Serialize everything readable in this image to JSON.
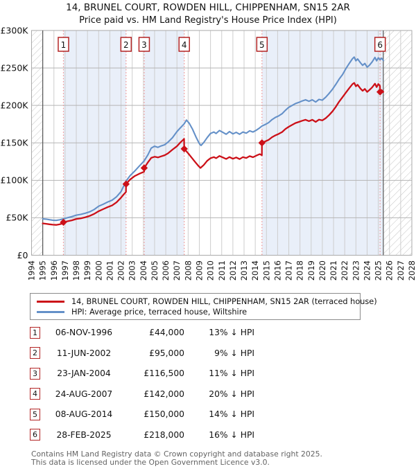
{
  "header": {
    "address_line": "14, BRUNEL COURT, ROWDEN HILL, CHIPPENHAM, SN15 2AR",
    "subtitle": "Price paid vs. HM Land Registry's House Price Index (HPI)"
  },
  "legend": {
    "series": [
      {
        "label": "14, BRUNEL COURT, ROWDEN HILL, CHIPPENHAM, SN15 2AR (terraced house)",
        "color": "#cc1018"
      },
      {
        "label": "HPI: Average price, terraced house, Wiltshire",
        "color": "#6490c8"
      }
    ]
  },
  "sales": [
    {
      "num": "1",
      "date": "06-NOV-1996",
      "price_label": "£44,000",
      "price": 44000,
      "year": 1996.85,
      "hpi_note": "13% ↓ HPI"
    },
    {
      "num": "2",
      "date": "11-JUN-2002",
      "price_label": "£95,000",
      "price": 95000,
      "year": 2002.45,
      "hpi_note": "9% ↓ HPI"
    },
    {
      "num": "3",
      "date": "23-JAN-2004",
      "price_label": "£116,500",
      "price": 116500,
      "year": 2004.07,
      "hpi_note": "11% ↓ HPI"
    },
    {
      "num": "4",
      "date": "24-AUG-2007",
      "price_label": "£142,000",
      "price": 142000,
      "year": 2007.65,
      "hpi_note": "20% ↓ HPI"
    },
    {
      "num": "5",
      "date": "08-AUG-2014",
      "price_label": "£150,000",
      "price": 150000,
      "year": 2014.6,
      "hpi_note": "14% ↓ HPI"
    },
    {
      "num": "6",
      "date": "28-FEB-2025",
      "price_label": "£218,000",
      "price": 218000,
      "year": 2025.16,
      "hpi_note": "16% ↓ HPI"
    }
  ],
  "footer": {
    "line1": "Contains HM Land Registry data © Crown copyright and database right 2025.",
    "line2": "This data is licensed under the Open Government Licence v3.0."
  },
  "chart_data": {
    "type": "line",
    "title": "14, BRUNEL COURT, ROWDEN HILL, CHIPPENHAM, SN15 2AR — Price paid vs. HPI",
    "xlabel": "",
    "ylabel": "",
    "grid": true,
    "legend_position": "below",
    "x_axis": {
      "min": 1994,
      "max": 2028,
      "ticks": [
        "1994",
        "1995",
        "1996",
        "1997",
        "1998",
        "1999",
        "2000",
        "2001",
        "2002",
        "2003",
        "2004",
        "2005",
        "2006",
        "2007",
        "2008",
        "2009",
        "2010",
        "2011",
        "2012",
        "2013",
        "2014",
        "2015",
        "2016",
        "2017",
        "2018",
        "2019",
        "2020",
        "2021",
        "2022",
        "2023",
        "2024",
        "2025",
        "2026",
        "2027",
        "2028"
      ]
    },
    "y_axis": {
      "min": 0,
      "max": 300000,
      "ticks": [
        {
          "v": 0,
          "label": "£0"
        },
        {
          "v": 50000,
          "label": "£50K"
        },
        {
          "v": 100000,
          "label": "£100K"
        },
        {
          "v": 150000,
          "label": "£150K"
        },
        {
          "v": 200000,
          "label": "£200K"
        },
        {
          "v": 250000,
          "label": "£250K"
        },
        {
          "v": 300000,
          "label": "£300K"
        }
      ]
    },
    "ownership_bands": [
      [
        1996.85,
        2002.45
      ],
      [
        2004.07,
        2007.65
      ],
      [
        2014.6,
        2025.45
      ]
    ],
    "no_data_hatch": [
      [
        1994,
        1995
      ],
      [
        2025.45,
        2028
      ]
    ],
    "colors": {
      "price_line": "#cc1018",
      "hpi_line": "#6490c8",
      "sale_marker": "#cc1018",
      "sale_vline": "#ee8e8e",
      "band_fill": "#e9eff9",
      "grid_v": "#cdcdcd",
      "grid_h": "#b5b5b5",
      "plot_border": "#aaaaaa",
      "data_edge_line": "#555555",
      "hatch_line": "#c4c4c4",
      "badge_border": "#b32424"
    },
    "series": [
      {
        "name": "14, BRUNEL COURT, ROWDEN HILL, CHIPPENHAM, SN15 2AR (terraced house)",
        "color": "#cc1018",
        "points": [
          [
            1995.0,
            42500
          ],
          [
            1995.3,
            42000
          ],
          [
            1995.6,
            41300
          ],
          [
            1995.9,
            40800
          ],
          [
            1996.2,
            40500
          ],
          [
            1996.5,
            41200
          ],
          [
            1996.84,
            42600
          ],
          [
            1996.85,
            44000
          ],
          [
            1997.2,
            45300
          ],
          [
            1997.6,
            46600
          ],
          [
            1998.0,
            48400
          ],
          [
            1998.4,
            49300
          ],
          [
            1998.8,
            50700
          ],
          [
            1999.2,
            52500
          ],
          [
            1999.6,
            55200
          ],
          [
            2000.0,
            58800
          ],
          [
            2000.4,
            61500
          ],
          [
            2000.8,
            64200
          ],
          [
            2001.2,
            66500
          ],
          [
            2001.6,
            70600
          ],
          [
            2002.0,
            76900
          ],
          [
            2002.2,
            80500
          ],
          [
            2002.44,
            84500
          ],
          [
            2002.45,
            95000
          ],
          [
            2002.8,
            101000
          ],
          [
            2003.2,
            105500
          ],
          [
            2003.6,
            108500
          ],
          [
            2004.06,
            111500
          ],
          [
            2004.07,
            116500
          ],
          [
            2004.4,
            124000
          ],
          [
            2004.7,
            130000
          ],
          [
            2005.0,
            131500
          ],
          [
            2005.3,
            130500
          ],
          [
            2005.6,
            132000
          ],
          [
            2005.9,
            133500
          ],
          [
            2006.2,
            136000
          ],
          [
            2006.6,
            141000
          ],
          [
            2007.0,
            145500
          ],
          [
            2007.3,
            150500
          ],
          [
            2007.55,
            154000
          ],
          [
            2007.64,
            155300
          ],
          [
            2007.65,
            142000
          ],
          [
            2008.0,
            136000
          ],
          [
            2008.3,
            130500
          ],
          [
            2008.6,
            125000
          ],
          [
            2008.9,
            119500
          ],
          [
            2009.1,
            116500
          ],
          [
            2009.4,
            120500
          ],
          [
            2009.7,
            126000
          ],
          [
            2010.0,
            129500
          ],
          [
            2010.3,
            131000
          ],
          [
            2010.5,
            129500
          ],
          [
            2010.8,
            132500
          ],
          [
            2011.1,
            130500
          ],
          [
            2011.4,
            128500
          ],
          [
            2011.7,
            131000
          ],
          [
            2012.0,
            128800
          ],
          [
            2012.3,
            130500
          ],
          [
            2012.6,
            128300
          ],
          [
            2012.9,
            131000
          ],
          [
            2013.2,
            129800
          ],
          [
            2013.5,
            132300
          ],
          [
            2013.8,
            130800
          ],
          [
            2014.1,
            133000
          ],
          [
            2014.4,
            135000
          ],
          [
            2014.59,
            133500
          ],
          [
            2014.6,
            150000
          ],
          [
            2014.9,
            152000
          ],
          [
            2015.2,
            154000
          ],
          [
            2015.5,
            157500
          ],
          [
            2015.8,
            160000
          ],
          [
            2016.1,
            162000
          ],
          [
            2016.4,
            164500
          ],
          [
            2016.7,
            168500
          ],
          [
            2017.0,
            171500
          ],
          [
            2017.3,
            174000
          ],
          [
            2017.6,
            176500
          ],
          [
            2017.9,
            178000
          ],
          [
            2018.2,
            179500
          ],
          [
            2018.5,
            180800
          ],
          [
            2018.8,
            179000
          ],
          [
            2019.1,
            180800
          ],
          [
            2019.4,
            178000
          ],
          [
            2019.7,
            181000
          ],
          [
            2020.0,
            180000
          ],
          [
            2020.3,
            183000
          ],
          [
            2020.6,
            187000
          ],
          [
            2020.9,
            192000
          ],
          [
            2021.2,
            198000
          ],
          [
            2021.5,
            205000
          ],
          [
            2021.8,
            211000
          ],
          [
            2022.1,
            217000
          ],
          [
            2022.4,
            223000
          ],
          [
            2022.7,
            228500
          ],
          [
            2022.85,
            230000
          ],
          [
            2023.0,
            225500
          ],
          [
            2023.15,
            227500
          ],
          [
            2023.4,
            222500
          ],
          [
            2023.6,
            219500
          ],
          [
            2023.8,
            222000
          ],
          [
            2024.0,
            218000
          ],
          [
            2024.2,
            220500
          ],
          [
            2024.45,
            224000
          ],
          [
            2024.7,
            229000
          ],
          [
            2024.85,
            224500
          ],
          [
            2025.0,
            228500
          ],
          [
            2025.15,
            226000
          ],
          [
            2025.16,
            218000
          ],
          [
            2025.3,
            220500
          ],
          [
            2025.45,
            218000
          ]
        ]
      },
      {
        "name": "HPI: Average price, terraced house, Wiltshire",
        "color": "#6490c8",
        "points": [
          [
            1995.0,
            48500
          ],
          [
            1995.3,
            48200
          ],
          [
            1995.6,
            47400
          ],
          [
            1995.9,
            46800
          ],
          [
            1996.2,
            46500
          ],
          [
            1996.5,
            47200
          ],
          [
            1996.85,
            48500
          ],
          [
            1997.2,
            50000
          ],
          [
            1997.6,
            51500
          ],
          [
            1998.0,
            53500
          ],
          [
            1998.4,
            54500
          ],
          [
            1998.8,
            56000
          ],
          [
            1999.2,
            58000
          ],
          [
            1999.6,
            61000
          ],
          [
            2000.0,
            65500
          ],
          [
            2000.4,
            68000
          ],
          [
            2000.8,
            71000
          ],
          [
            2001.2,
            73500
          ],
          [
            2001.6,
            78000
          ],
          [
            2002.0,
            85000
          ],
          [
            2002.45,
            99000
          ],
          [
            2002.8,
            106000
          ],
          [
            2003.2,
            112000
          ],
          [
            2003.6,
            118500
          ],
          [
            2004.07,
            126000
          ],
          [
            2004.4,
            134000
          ],
          [
            2004.7,
            143000
          ],
          [
            2005.0,
            145500
          ],
          [
            2005.3,
            144000
          ],
          [
            2005.6,
            146000
          ],
          [
            2005.9,
            147500
          ],
          [
            2006.2,
            151000
          ],
          [
            2006.6,
            157000
          ],
          [
            2007.0,
            165000
          ],
          [
            2007.3,
            170000
          ],
          [
            2007.65,
            175500
          ],
          [
            2007.85,
            180500
          ],
          [
            2008.1,
            176000
          ],
          [
            2008.4,
            168000
          ],
          [
            2008.7,
            158000
          ],
          [
            2009.0,
            149000
          ],
          [
            2009.15,
            146500
          ],
          [
            2009.4,
            150500
          ],
          [
            2009.7,
            157000
          ],
          [
            2010.0,
            162500
          ],
          [
            2010.3,
            164500
          ],
          [
            2010.5,
            162500
          ],
          [
            2010.8,
            166500
          ],
          [
            2011.1,
            164000
          ],
          [
            2011.4,
            161500
          ],
          [
            2011.7,
            165000
          ],
          [
            2012.0,
            162000
          ],
          [
            2012.3,
            164000
          ],
          [
            2012.6,
            161500
          ],
          [
            2012.9,
            164500
          ],
          [
            2013.2,
            163000
          ],
          [
            2013.5,
            166000
          ],
          [
            2013.8,
            164500
          ],
          [
            2014.1,
            167000
          ],
          [
            2014.4,
            170000
          ],
          [
            2014.6,
            172500
          ],
          [
            2014.9,
            174500
          ],
          [
            2015.2,
            177000
          ],
          [
            2015.5,
            181000
          ],
          [
            2015.8,
            184000
          ],
          [
            2016.1,
            186000
          ],
          [
            2016.4,
            189000
          ],
          [
            2016.7,
            193500
          ],
          [
            2017.0,
            197500
          ],
          [
            2017.3,
            200000
          ],
          [
            2017.6,
            202500
          ],
          [
            2017.9,
            204000
          ],
          [
            2018.2,
            206000
          ],
          [
            2018.5,
            207500
          ],
          [
            2018.8,
            205500
          ],
          [
            2019.1,
            207500
          ],
          [
            2019.4,
            204500
          ],
          [
            2019.7,
            208000
          ],
          [
            2020.0,
            207000
          ],
          [
            2020.3,
            211000
          ],
          [
            2020.6,
            216000
          ],
          [
            2020.9,
            221500
          ],
          [
            2021.2,
            228000
          ],
          [
            2021.5,
            235000
          ],
          [
            2021.8,
            241000
          ],
          [
            2022.1,
            249000
          ],
          [
            2022.4,
            256000
          ],
          [
            2022.7,
            262500
          ],
          [
            2022.85,
            264500
          ],
          [
            2023.0,
            259500
          ],
          [
            2023.15,
            262000
          ],
          [
            2023.4,
            257000
          ],
          [
            2023.6,
            253500
          ],
          [
            2023.8,
            256000
          ],
          [
            2024.0,
            251000
          ],
          [
            2024.2,
            253500
          ],
          [
            2024.45,
            258000
          ],
          [
            2024.7,
            264000
          ],
          [
            2024.85,
            259500
          ],
          [
            2025.0,
            263500
          ],
          [
            2025.15,
            261000
          ],
          [
            2025.3,
            263000
          ],
          [
            2025.45,
            260000
          ]
        ]
      }
    ]
  }
}
